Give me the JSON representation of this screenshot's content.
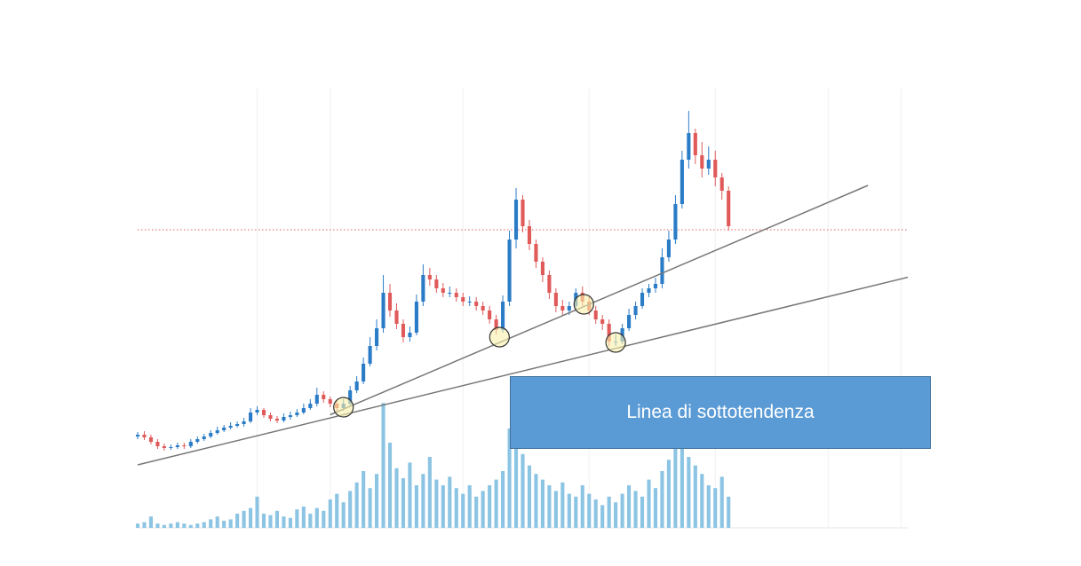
{
  "chart_data": {
    "type": "candlestick",
    "annotation": "Linea di sottotendenza",
    "xlim": [
      0,
      116
    ],
    "xticks": [
      18,
      29,
      49,
      68,
      87,
      104,
      115
    ],
    "ylim": [
      0,
      100
    ],
    "vlim": [
      0,
      100
    ],
    "grid": true,
    "up_color": "#2b7cc7",
    "down_color": "#e05a5a",
    "volume_color": "#8cc4e3",
    "open": [
      21.6,
      22,
      21.4,
      20.4,
      19.4,
      19,
      19.2,
      19.6,
      19.4,
      20.4,
      21,
      21.6,
      22.4,
      23,
      23.6,
      24,
      24.4,
      25,
      27,
      27.6,
      26.4,
      25.6,
      25.2,
      26,
      26.4,
      27,
      28,
      29,
      31,
      30,
      29,
      28,
      29,
      32,
      34,
      38,
      42,
      46,
      54,
      50,
      47,
      44,
      45,
      52,
      58,
      57,
      55,
      54,
      54,
      53,
      52,
      52,
      51,
      50,
      48,
      45.6,
      52,
      66,
      75,
      69,
      65,
      61,
      58,
      54,
      51,
      50,
      51,
      54,
      52,
      50,
      48,
      47,
      43,
      43,
      46,
      49,
      51,
      54,
      55,
      56,
      62,
      66,
      74,
      84,
      90,
      85,
      82,
      84,
      80,
      77
    ],
    "high": [
      22.6,
      22.8,
      22,
      21,
      20,
      19.8,
      20.2,
      20.2,
      21,
      21.6,
      22.2,
      23,
      23.8,
      24.2,
      24.8,
      25,
      25.8,
      28,
      28.4,
      28,
      27,
      26.2,
      26.8,
      27.2,
      27.8,
      29,
      30,
      32.6,
      31.8,
      30.6,
      29.6,
      30,
      33,
      35.2,
      39.4,
      44,
      48,
      58,
      56,
      51.6,
      48,
      46.4,
      53.6,
      60.4,
      59.6,
      58,
      56.2,
      55.4,
      55,
      54,
      53.2,
      53,
      52,
      51,
      49,
      53.4,
      68,
      77.6,
      76,
      70.4,
      66,
      62,
      59,
      55,
      52.4,
      52,
      55,
      55.4,
      53,
      51,
      49,
      48,
      44.6,
      47,
      50.4,
      52,
      55,
      56,
      57.4,
      64,
      68,
      76,
      86,
      95,
      91,
      88,
      87,
      86,
      81,
      78
    ],
    "low": [
      21,
      20.8,
      19.8,
      18.8,
      18.4,
      18.6,
      18.8,
      18.8,
      19,
      20,
      20.6,
      21.2,
      22,
      22.6,
      23.2,
      23.6,
      23.8,
      24.6,
      26.4,
      25.8,
      25,
      24.6,
      24.8,
      25.4,
      26,
      26.6,
      27.6,
      28.4,
      29.2,
      28.2,
      27,
      27.4,
      28.6,
      31.4,
      33.4,
      37.4,
      41,
      45,
      48.6,
      45.8,
      42.8,
      43,
      44.4,
      51,
      55.6,
      54,
      53,
      53,
      52,
      51,
      51,
      50,
      49,
      47,
      44.6,
      45,
      51,
      64,
      67.6,
      63.6,
      59.6,
      56.4,
      52.6,
      49.6,
      49,
      49,
      50,
      51,
      49,
      47,
      45.6,
      42,
      42,
      42.4,
      45.4,
      48,
      50.4,
      53,
      54,
      55,
      61,
      65,
      73,
      82,
      83,
      80,
      80.6,
      78,
      75,
      68
    ],
    "close": [
      22,
      21.4,
      20.4,
      19.4,
      19,
      19.2,
      19.6,
      19.4,
      20.4,
      21,
      21.6,
      22.4,
      23,
      23.6,
      24,
      24.4,
      25,
      27,
      27.6,
      26.4,
      25.6,
      25.2,
      26,
      26.4,
      27,
      28,
      29,
      31,
      30,
      29,
      28,
      29,
      32,
      34,
      38,
      42,
      46,
      54,
      50,
      47,
      44,
      45,
      52,
      58,
      57,
      55,
      54,
      54,
      53,
      52,
      52,
      51,
      50,
      48,
      45.6,
      52,
      66,
      75,
      69,
      65,
      61,
      58,
      54,
      51,
      50,
      51,
      54,
      52,
      50,
      48,
      47,
      43,
      43,
      46,
      49,
      51,
      54,
      55,
      56,
      62,
      66,
      74,
      84,
      90,
      85,
      82,
      84,
      80,
      77,
      69
    ],
    "volume": [
      3,
      4,
      8,
      3,
      2,
      3,
      4,
      3,
      2,
      3,
      4,
      6,
      8,
      5,
      6,
      10,
      12,
      14,
      22,
      10,
      9,
      12,
      8,
      7,
      13,
      15,
      10,
      14,
      12,
      20,
      24,
      18,
      26,
      32,
      40,
      28,
      38,
      88,
      60,
      42,
      35,
      46,
      30,
      38,
      50,
      34,
      30,
      36,
      28,
      24,
      30,
      22,
      26,
      30,
      34,
      40,
      70,
      60,
      52,
      44,
      38,
      34,
      30,
      26,
      32,
      24,
      22,
      30,
      24,
      20,
      16,
      22,
      18,
      24,
      30,
      26,
      22,
      34,
      28,
      40,
      48,
      62,
      70,
      50,
      44,
      38,
      30,
      28,
      36,
      22
    ],
    "reference_line": {
      "y": 68.2,
      "color": "#e06060"
    },
    "trendlines": [
      {
        "x": [
          0,
          116
        ],
        "y": [
          15.2,
          57.5
        ],
        "color": "#777777"
      },
      {
        "x": [
          29,
          110
        ],
        "y": [
          26.5,
          78.2
        ],
        "color": "#777777"
      }
    ],
    "highlights": {
      "x": [
        31,
        54.5,
        67.2,
        72
      ],
      "y": [
        28.2,
        44,
        51.4,
        42.8
      ]
    }
  }
}
